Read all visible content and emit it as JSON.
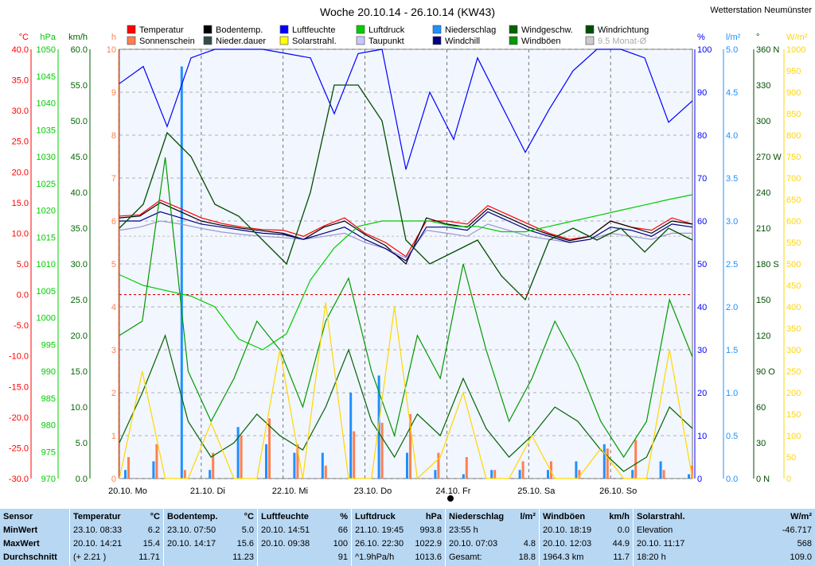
{
  "header": {
    "title": "Woche 20.10.14 - 26.10.14 (KW43)",
    "station": "Wetterstation Neumünster"
  },
  "legend": [
    {
      "label": "Temperatur",
      "color": "#ff0000"
    },
    {
      "label": "Bodentemp.",
      "color": "#000000"
    },
    {
      "label": "Luftfeuchte",
      "color": "#0000ff"
    },
    {
      "label": "Luftdruck",
      "color": "#00cc00"
    },
    {
      "label": "Niederschlag",
      "color": "#1e90ff"
    },
    {
      "label": "Windgeschw.",
      "color": "#006400"
    },
    {
      "label": "Windrichtung",
      "color": "#004d00"
    },
    {
      "label": "Sonnenschein",
      "color": "#ff7f50"
    },
    {
      "label": "Nieder.dauer",
      "color": "#2f4f4f"
    },
    {
      "label": "Solarstrahl.",
      "color": "#ffff00"
    },
    {
      "label": "Taupunkt",
      "color": "#c8c8ff"
    },
    {
      "label": "Windchill",
      "color": "#000080"
    },
    {
      "label": "Windböen",
      "color": "#009900"
    },
    {
      "label": "9.5 Monat-Ø",
      "color": "#cccccc"
    }
  ],
  "chart_data": {
    "type": "line",
    "x_labels": [
      "20.10. Mo",
      "21.10. Di",
      "22.10. Mi",
      "23.10. Do",
      "24.10. Fr",
      "25.10. Sa",
      "26.10. So"
    ],
    "axes": {
      "temp": {
        "unit": "°C",
        "min": -30,
        "max": 40,
        "ticks": [
          "40.0",
          "35.0",
          "30.0",
          "25.0",
          "20.0",
          "15.0",
          "10.0",
          "5.0",
          "0.0",
          "-5.0",
          "-10.0",
          "-15.0",
          "-20.0",
          "-25.0",
          "-30.0"
        ],
        "color": "#ff0000"
      },
      "pressure": {
        "unit": "hPa",
        "min": 970,
        "max": 1050,
        "ticks": [
          "1050",
          "1045",
          "1040",
          "1035",
          "1030",
          "1025",
          "1020",
          "1015",
          "1010",
          "1005",
          "1000",
          "995",
          "990",
          "985",
          "980",
          "975",
          "970"
        ],
        "color": "#00cc00"
      },
      "wind": {
        "unit": "km/h",
        "min": 0,
        "max": 60,
        "ticks": [
          "60.0",
          "55.0",
          "50.0",
          "45.0",
          "40.0",
          "35.0",
          "30.0",
          "25.0",
          "20.0",
          "15.0",
          "10.0",
          "5.0",
          "0.0"
        ],
        "color": "#006400"
      },
      "hours": {
        "unit": "h",
        "min": 0,
        "max": 10,
        "ticks": [
          "10",
          "9",
          "8",
          "7",
          "6",
          "5",
          "4",
          "3",
          "2",
          "1",
          "0"
        ],
        "color": "#ff7f50"
      },
      "humidity": {
        "unit": "%",
        "min": 0,
        "max": 100,
        "ticks": [
          "100",
          "90",
          "80",
          "70",
          "60",
          "50",
          "40",
          "30",
          "20",
          "10",
          "0"
        ],
        "color": "#0000ff"
      },
      "rain": {
        "unit": "l/m²",
        "min": 0,
        "max": 5,
        "ticks": [
          "5.0",
          "4.5",
          "4.0",
          "3.5",
          "3.0",
          "2.5",
          "2.0",
          "1.5",
          "1.0",
          "0.5",
          "0.0"
        ],
        "color": "#1e90ff"
      },
      "direction": {
        "unit": "°",
        "min": 0,
        "max": 360,
        "ticks": [
          "360 N",
          "330",
          "300",
          "270 W",
          "240",
          "210",
          "180 S",
          "150",
          "120",
          "90 O",
          "60",
          "30",
          "0 N"
        ],
        "color": "#004d00"
      },
      "solar": {
        "unit": "W/m²",
        "min": 0,
        "max": 1000,
        "ticks": [
          "1000",
          "950",
          "900",
          "850",
          "800",
          "750",
          "700",
          "650",
          "600",
          "550",
          "500",
          "450",
          "400",
          "350",
          "300",
          "250",
          "200",
          "150",
          "100",
          "50",
          "0"
        ],
        "color": "#ffd700"
      }
    },
    "series": [
      {
        "name": "Temperatur",
        "axis": "temp",
        "color": "#ff0000",
        "values": [
          12.8,
          13.0,
          15.4,
          14.0,
          12.5,
          11.6,
          11.0,
          10.6,
          10.5,
          9.5,
          11.2,
          12.5,
          10.0,
          8.5,
          6.2,
          12.0,
          12.0,
          11.5,
          14.5,
          13.0,
          11.5,
          10.0,
          9.0,
          9.5,
          12.0,
          11.0,
          10.5,
          12.5,
          11.5
        ]
      },
      {
        "name": "Bodentemp.",
        "axis": "temp",
        "color": "#000000",
        "values": [
          12.5,
          12.8,
          15.0,
          13.5,
          12.0,
          11.3,
          10.8,
          10.4,
          10.0,
          9.0,
          11.0,
          12.0,
          9.8,
          8.0,
          5.0,
          12.5,
          11.5,
          11.0,
          14.0,
          12.5,
          11.0,
          9.8,
          8.8,
          9.5,
          12.0,
          11.0,
          10.0,
          12.0,
          11.5
        ]
      },
      {
        "name": "Taupunkt",
        "axis": "temp",
        "color": "#9999cc",
        "values": [
          10.5,
          11.0,
          12.0,
          11.5,
          10.8,
          10.2,
          9.8,
          9.5,
          9.3,
          9.0,
          9.5,
          10.0,
          8.5,
          7.5,
          6.0,
          10.5,
          10.0,
          9.5,
          11.5,
          10.5,
          9.5,
          9.0,
          8.5,
          9.0,
          10.0,
          9.5,
          9.0,
          10.0,
          10.0
        ]
      },
      {
        "name": "Windchill",
        "axis": "temp",
        "color": "#000080",
        "values": [
          12.0,
          12.0,
          13.5,
          12.5,
          11.5,
          11.0,
          10.5,
          10.0,
          9.8,
          9.0,
          10.0,
          11.0,
          9.0,
          7.5,
          5.5,
          11.0,
          11.0,
          10.5,
          13.5,
          12.0,
          10.5,
          9.5,
          8.5,
          9.0,
          11.0,
          10.5,
          9.5,
          11.5,
          11.0
        ]
      },
      {
        "name": "Luftdruck",
        "axis": "pressure",
        "color": "#00cc00",
        "values": [
          1008,
          1006,
          1005,
          1004,
          1002,
          996,
          994,
          997,
          1007,
          1013,
          1017,
          1018,
          1018,
          1018,
          1017,
          1017,
          1016,
          1016,
          1017,
          1018,
          1019,
          1020,
          1021,
          1022,
          1022.9
        ]
      },
      {
        "name": "Luftfeuchte",
        "axis": "humidity",
        "color": "#0000ff",
        "values": [
          92,
          96,
          82,
          98,
          100,
          100,
          100,
          99,
          98,
          85,
          99,
          100,
          72,
          90,
          79,
          98,
          87,
          76,
          86,
          95,
          100,
          100,
          98,
          83,
          88
        ]
      },
      {
        "name": "Windgeschw.",
        "axis": "wind",
        "color": "#006400",
        "values": [
          5,
          12,
          20,
          8,
          3,
          5,
          9,
          6,
          4,
          10,
          18,
          8,
          3,
          9,
          6,
          14,
          7,
          3,
          6,
          10,
          8,
          4,
          1,
          3,
          10,
          7
        ]
      },
      {
        "name": "Windböen",
        "axis": "wind",
        "color": "#009900",
        "values": [
          20,
          22,
          44.9,
          15,
          8,
          14,
          22,
          18,
          10,
          22,
          28,
          15,
          6,
          20,
          14,
          30,
          18,
          8,
          14,
          22,
          16,
          8,
          3,
          8,
          25,
          17
        ]
      },
      {
        "name": "Windrichtung",
        "axis": "direction",
        "color": "#004d00",
        "values": [
          210,
          230,
          290,
          270,
          230,
          220,
          200,
          180,
          240,
          330,
          330,
          300,
          200,
          180,
          190,
          200,
          170,
          150,
          200,
          210,
          200,
          210,
          190,
          210,
          200
        ]
      },
      {
        "name": "Solarstrahl.",
        "axis": "solar",
        "color": "#ffd700",
        "values": [
          0,
          250,
          0,
          0,
          130,
          0,
          0,
          300,
          0,
          410,
          0,
          0,
          400,
          0,
          50,
          200,
          0,
          0,
          100,
          0,
          0,
          70,
          0,
          0,
          300,
          0
        ]
      }
    ],
    "bars": [
      {
        "name": "Niederschlag",
        "axis": "rain",
        "color": "#1e90ff",
        "values": [
          0.1,
          0.2,
          4.8,
          0.1,
          0.6,
          0.4,
          0.3,
          0.3,
          1.0,
          1.2,
          0.3,
          0.1,
          0.05,
          0.1,
          0.1,
          0.1,
          0.2,
          0.4,
          0.1,
          0.2,
          0.05
        ]
      },
      {
        "name": "Sonnenschein",
        "axis": "hours",
        "color": "#ff7f50",
        "values": [
          0.5,
          0.8,
          0.2,
          0.6,
          1.0,
          1.4,
          0.8,
          0.3,
          1.1,
          1.3,
          1.5,
          0.6,
          0.5,
          0.2,
          0.4,
          0.4,
          0.2,
          0.7,
          0.9,
          0.2,
          0.3
        ]
      }
    ],
    "reference_lines": [
      {
        "name": "9.5 Monat-Ø",
        "axis": "temp",
        "value": 9.5,
        "color": "#cccccc"
      },
      {
        "axis": "temp",
        "value": 0,
        "color": "#dd0000"
      }
    ]
  },
  "stats": {
    "labels": [
      "Sensor",
      "MinWert",
      "MaxWert",
      "Durchschnitt"
    ],
    "columns": [
      {
        "title": "Temperatur",
        "unit": "°C",
        "rows": [
          [
            "23.10.  08:33",
            "6.2"
          ],
          [
            "20.10.  14:21",
            "15.4"
          ],
          [
            "(+ 2.21 )",
            "11.71"
          ]
        ]
      },
      {
        "title": "Bodentemp.",
        "unit": "°C",
        "rows": [
          [
            "23.10.  07:50",
            "5.0"
          ],
          [
            "20.10.  14:17",
            "15.6"
          ],
          [
            "",
            "11.23"
          ]
        ]
      },
      {
        "title": "Luftfeuchte",
        "unit": "%",
        "rows": [
          [
            "20.10.  14:51",
            "66"
          ],
          [
            "20.10.  09:38",
            "100"
          ],
          [
            "",
            "91"
          ]
        ]
      },
      {
        "title": "Luftdruck",
        "unit": "hPa",
        "rows": [
          [
            "21.10.  19:45",
            "993.8"
          ],
          [
            "26.10.  22:30",
            "1022.9"
          ],
          [
            "^1.9hPa/h",
            "1013.6"
          ]
        ]
      },
      {
        "title": "Niederschlag",
        "unit": "l/m²",
        "rows": [
          [
            "23:55 h",
            ""
          ],
          [
            "20.10.  07:03",
            "4.8"
          ],
          [
            "Gesamt:",
            "18.8"
          ]
        ]
      },
      {
        "title": "Windböen",
        "unit": "km/h",
        "rows": [
          [
            "20.10.  18:19",
            "0.0"
          ],
          [
            "20.10.  12:03",
            "44.9"
          ],
          [
            "1964.3 km",
            "11.7"
          ]
        ]
      },
      {
        "title": "Solarstrahl.",
        "unit": "W/m²",
        "rows": [
          [
            "Elevation",
            "-46.717"
          ],
          [
            "20.10.  11:17",
            "568"
          ],
          [
            "18:20 h",
            "109.0"
          ]
        ]
      }
    ]
  }
}
